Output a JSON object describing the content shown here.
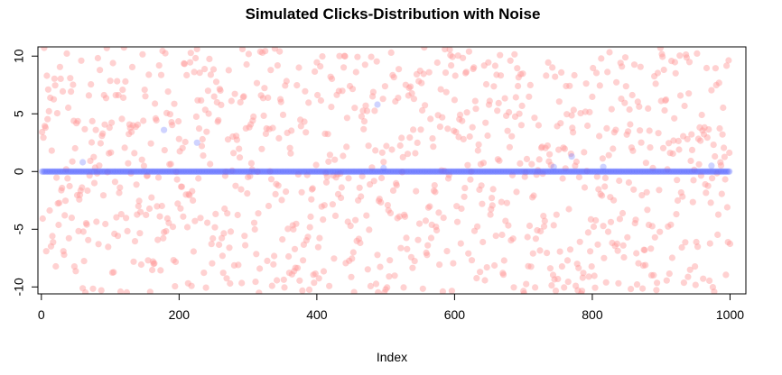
{
  "chart_data": {
    "type": "scatter",
    "title": "Simulated Clicks-Distribution with Noise",
    "xlabel": "Index",
    "ylabel": "",
    "xlim": [
      -5,
      1023
    ],
    "ylim": [
      -10.6,
      10.8
    ],
    "x_ticks": [
      0,
      200,
      400,
      600,
      800,
      1000
    ],
    "x_tick_labels": [
      "0",
      "200",
      "400",
      "600",
      "800",
      "1000"
    ],
    "y_ticks": [
      -10,
      -5,
      0,
      5,
      10
    ],
    "y_tick_labels": [
      "-10",
      "-5",
      "0",
      "5",
      "10"
    ],
    "grid": false,
    "legend": "none",
    "colors": {
      "noise": "#ff9a9a",
      "clicks": "#5f6dff"
    },
    "series": [
      {
        "role": "clicks",
        "x_range": [
          1,
          1000
        ],
        "y_constant": 0,
        "outliers": [
          {
            "x": 60,
            "y": 0.8
          },
          {
            "x": 178,
            "y": 3.6
          },
          {
            "x": 226,
            "y": 2.5
          },
          {
            "x": 488,
            "y": 5.8
          },
          {
            "x": 497,
            "y": 0.3
          },
          {
            "x": 744,
            "y": 0.4
          },
          {
            "x": 770,
            "y": 1.3
          },
          {
            "x": 816,
            "y": 0.4
          },
          {
            "x": 973,
            "y": 0.5
          }
        ]
      },
      {
        "role": "noise",
        "points_count": 1000,
        "y_range": [
          -10.6,
          10.8
        ],
        "distribution": "uniform random noise over the index range"
      }
    ]
  }
}
